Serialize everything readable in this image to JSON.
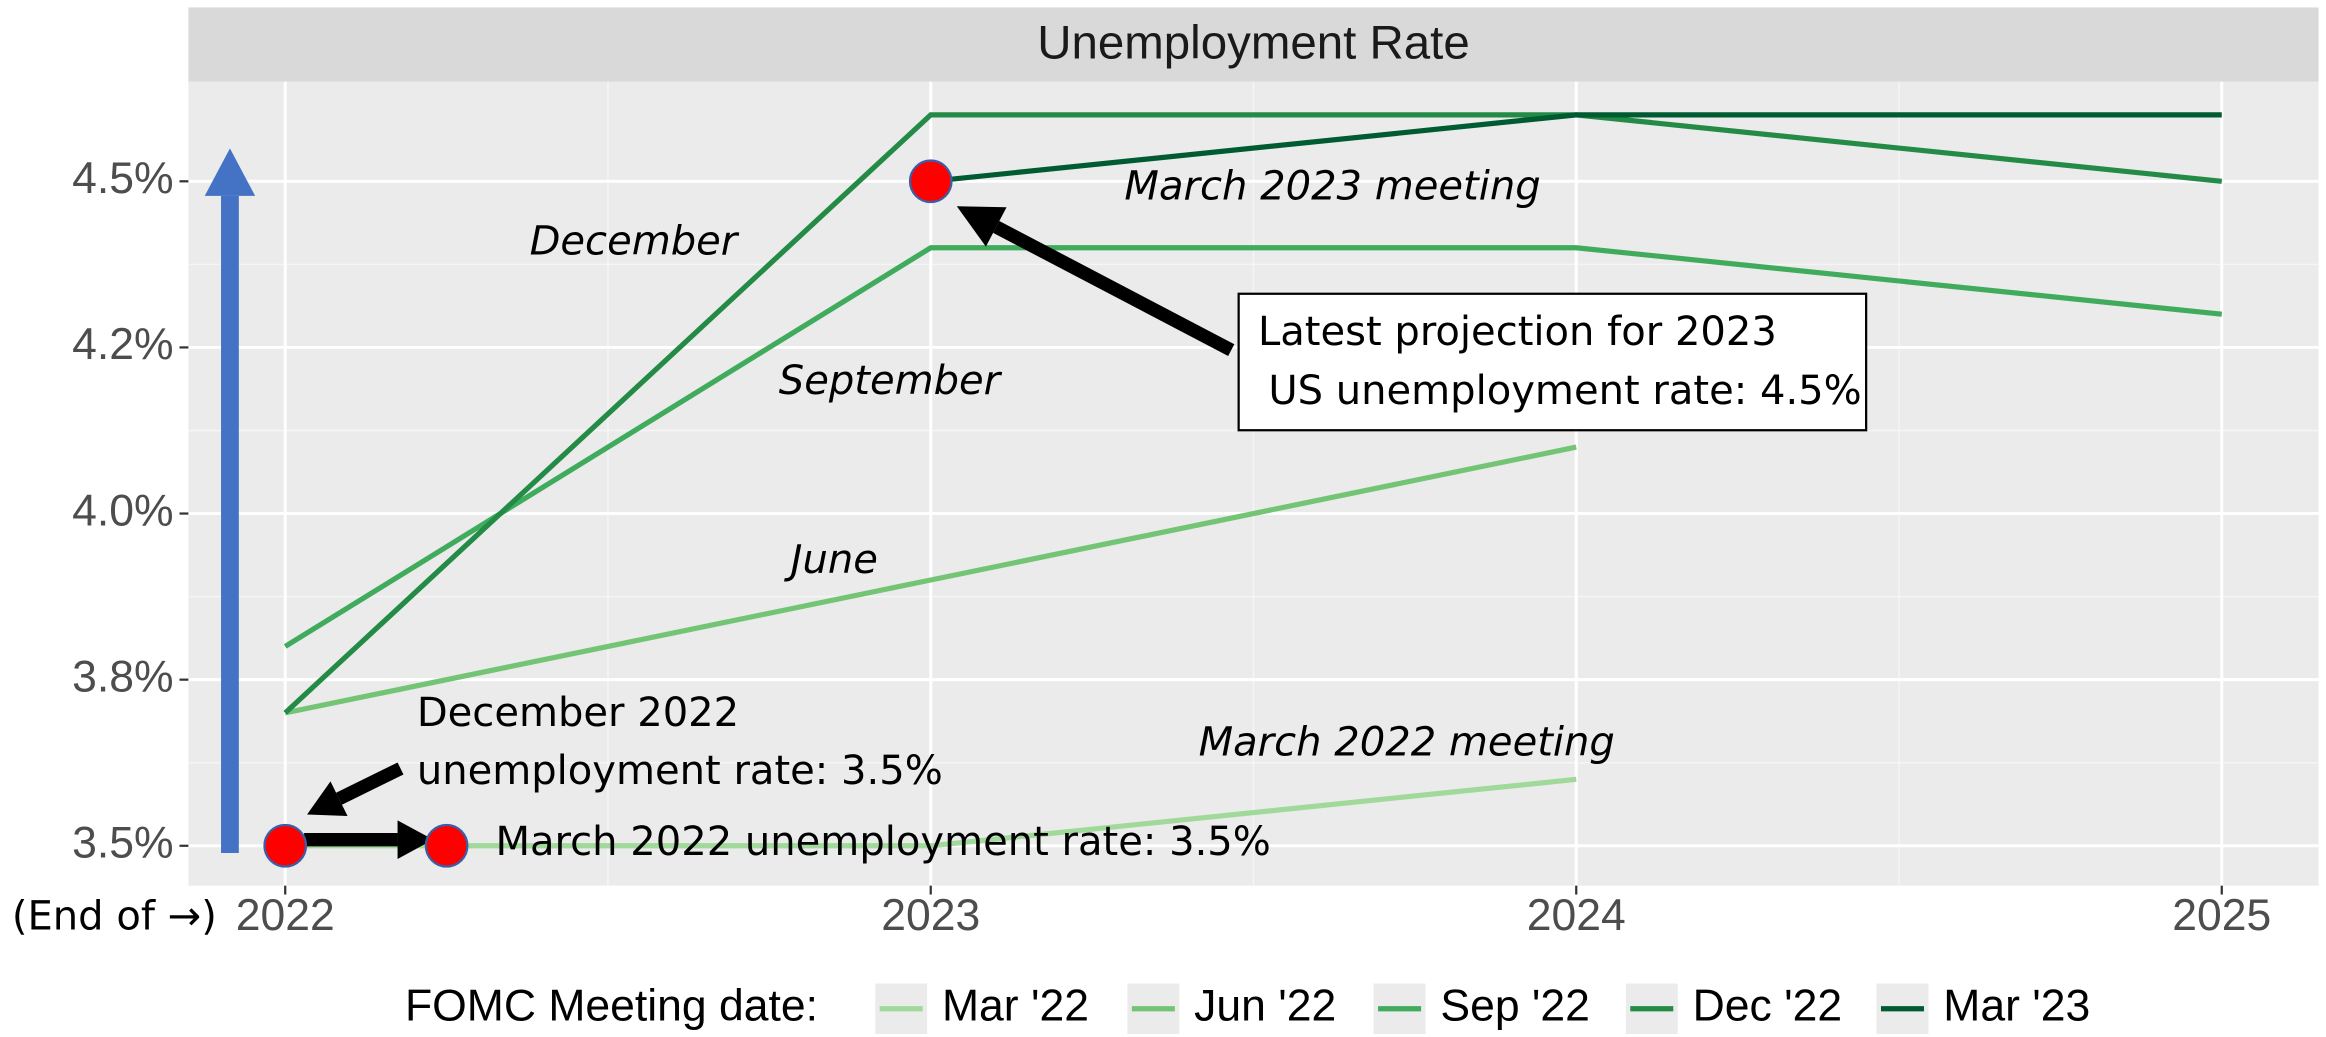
{
  "chart_data": {
    "type": "line",
    "title": "Unemployment Rate",
    "x": [
      2022,
      2023,
      2024,
      2025
    ],
    "xlim": [
      2021.85,
      2025.15
    ],
    "xticks": [
      2022,
      2023,
      2024,
      2025
    ],
    "ylim": [
      3.44,
      4.65
    ],
    "yticks": [
      {
        "value": 3.5,
        "label": "3.5%"
      },
      {
        "value": 3.75,
        "label": "3.8%"
      },
      {
        "value": 4.0,
        "label": "4.0%"
      },
      {
        "value": 4.25,
        "label": "4.2%"
      },
      {
        "value": 4.5,
        "label": "4.5%"
      }
    ],
    "grid": true,
    "legend_title": "FOMC Meeting date:",
    "legend": "bottom",
    "series": [
      {
        "name": "Mar '22",
        "color": "#a1d99b",
        "values": [
          3.5,
          3.5,
          3.6,
          null
        ]
      },
      {
        "name": "Jun '22",
        "color": "#74c476",
        "values": [
          3.7,
          3.9,
          4.1,
          null
        ]
      },
      {
        "name": "Sep '22",
        "color": "#41ab5d",
        "values": [
          3.8,
          4.4,
          4.4,
          4.3
        ]
      },
      {
        "name": "Dec '22",
        "color": "#238b45",
        "values": [
          3.7,
          4.6,
          4.6,
          4.5
        ]
      },
      {
        "name": "Mar '23",
        "color": "#005a32",
        "values": [
          null,
          4.5,
          4.6,
          4.6
        ]
      }
    ],
    "highlight_points": {
      "color": "#ff0000",
      "x": [
        2022,
        2022.25,
        2023
      ],
      "y": [
        3.5,
        3.5,
        4.5
      ]
    },
    "annotations": [
      "December",
      "September",
      "June",
      "March 2023 meeting",
      "March 2022 meeting",
      "Latest projection for 2023",
      "US unemployment rate: 4.5%",
      "December 2022",
      "unemployment rate: 3.5%",
      "March 2022 unemployment rate: 3.5%",
      "(End of →)"
    ]
  }
}
